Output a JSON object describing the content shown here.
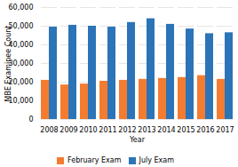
{
  "chart_data": {
    "type": "bar",
    "xlabel": "Year",
    "ylabel": "MBE Examinee Count",
    "categories": [
      "2008",
      "2009",
      "2010",
      "2011",
      "2012",
      "2013",
      "2014",
      "2015",
      "2016",
      "2017"
    ],
    "series": [
      {
        "name": "February Exam",
        "color": "#f47c30",
        "values": [
          21000,
          18500,
          19000,
          20500,
          21000,
          21500,
          22000,
          22500,
          23500,
          21500
        ]
      },
      {
        "name": "July Exam",
        "color": "#2b74b7",
        "values": [
          49500,
          50500,
          50000,
          49500,
          52000,
          54000,
          51000,
          48500,
          46000,
          46500
        ]
      }
    ],
    "ylim": [
      0,
      60000
    ],
    "yticks": [
      0,
      {
        "value": 10000,
        "label": "10,000"
      },
      {
        "value": 20000,
        "label": "20,000"
      },
      {
        "value": 30000,
        "label": "30,000"
      },
      {
        "value": 40000,
        "label": "40,000"
      },
      {
        "value": 50000,
        "label": "50,000"
      },
      {
        "value": 60000,
        "label": "60,000"
      }
    ],
    "grid": true,
    "legend": "bottom"
  }
}
